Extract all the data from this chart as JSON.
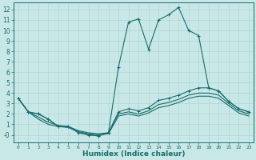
{
  "xlabel": "Humidex (Indice chaleur)",
  "background_color": "#c8e8e8",
  "line_color": "#1a6b6b",
  "grid_color": "#b0d4d4",
  "xlim": [
    -0.5,
    23.5
  ],
  "ylim": [
    -0.7,
    12.7
  ],
  "xticks": [
    0,
    1,
    2,
    3,
    4,
    5,
    6,
    7,
    8,
    9,
    10,
    11,
    12,
    13,
    14,
    15,
    16,
    17,
    18,
    19,
    20,
    21,
    22,
    23
  ],
  "yticks": [
    0,
    1,
    2,
    3,
    4,
    5,
    6,
    7,
    8,
    9,
    10,
    11,
    12
  ],
  "ytick_labels": [
    "-0",
    "1",
    "2",
    "3",
    "4",
    "5",
    "6",
    "7",
    "8",
    "9",
    "10",
    "11",
    "12"
  ],
  "line1_x": [
    0,
    1,
    2,
    3,
    4,
    5,
    6,
    7,
    8,
    9,
    10,
    11,
    12,
    13,
    14,
    15,
    16,
    17,
    18,
    19,
    20,
    21,
    22,
    23
  ],
  "line1_y": [
    3.5,
    2.2,
    2.0,
    1.5,
    0.8,
    0.8,
    0.2,
    0.0,
    -0.1,
    0.2,
    6.5,
    10.8,
    11.1,
    8.2,
    11.0,
    11.5,
    12.2,
    10.0,
    9.5,
    4.5,
    4.2,
    3.2,
    2.5,
    2.2
  ],
  "line2_x": [
    0,
    1,
    2,
    3,
    4,
    5,
    6,
    7,
    8,
    9,
    10,
    11,
    12,
    13,
    14,
    15,
    16,
    17,
    18,
    19,
    20,
    21,
    22,
    23
  ],
  "line2_y": [
    3.5,
    2.2,
    2.0,
    1.5,
    0.8,
    0.8,
    0.2,
    0.0,
    -0.1,
    0.2,
    2.2,
    2.5,
    2.3,
    2.6,
    3.3,
    3.5,
    3.8,
    4.2,
    4.5,
    4.5,
    4.2,
    3.2,
    2.5,
    2.2
  ],
  "line3_x": [
    0,
    1,
    2,
    3,
    4,
    5,
    6,
    7,
    8,
    9,
    10,
    11,
    12,
    13,
    14,
    15,
    16,
    17,
    18,
    19,
    20,
    21,
    22,
    23
  ],
  "line3_y": [
    3.5,
    2.2,
    1.7,
    1.2,
    0.9,
    0.8,
    0.4,
    0.2,
    0.1,
    0.2,
    2.0,
    2.2,
    2.0,
    2.3,
    2.9,
    3.1,
    3.4,
    3.8,
    4.0,
    4.0,
    3.8,
    3.0,
    2.3,
    2.0
  ],
  "line4_x": [
    0,
    1,
    2,
    3,
    4,
    5,
    6,
    7,
    8,
    9,
    10,
    11,
    12,
    13,
    14,
    15,
    16,
    17,
    18,
    19,
    20,
    21,
    22,
    23
  ],
  "line4_y": [
    3.5,
    2.2,
    1.5,
    1.0,
    0.8,
    0.7,
    0.3,
    0.1,
    0.0,
    0.1,
    1.8,
    2.0,
    1.8,
    2.1,
    2.6,
    2.8,
    3.1,
    3.5,
    3.7,
    3.7,
    3.5,
    2.8,
    2.1,
    1.8
  ]
}
